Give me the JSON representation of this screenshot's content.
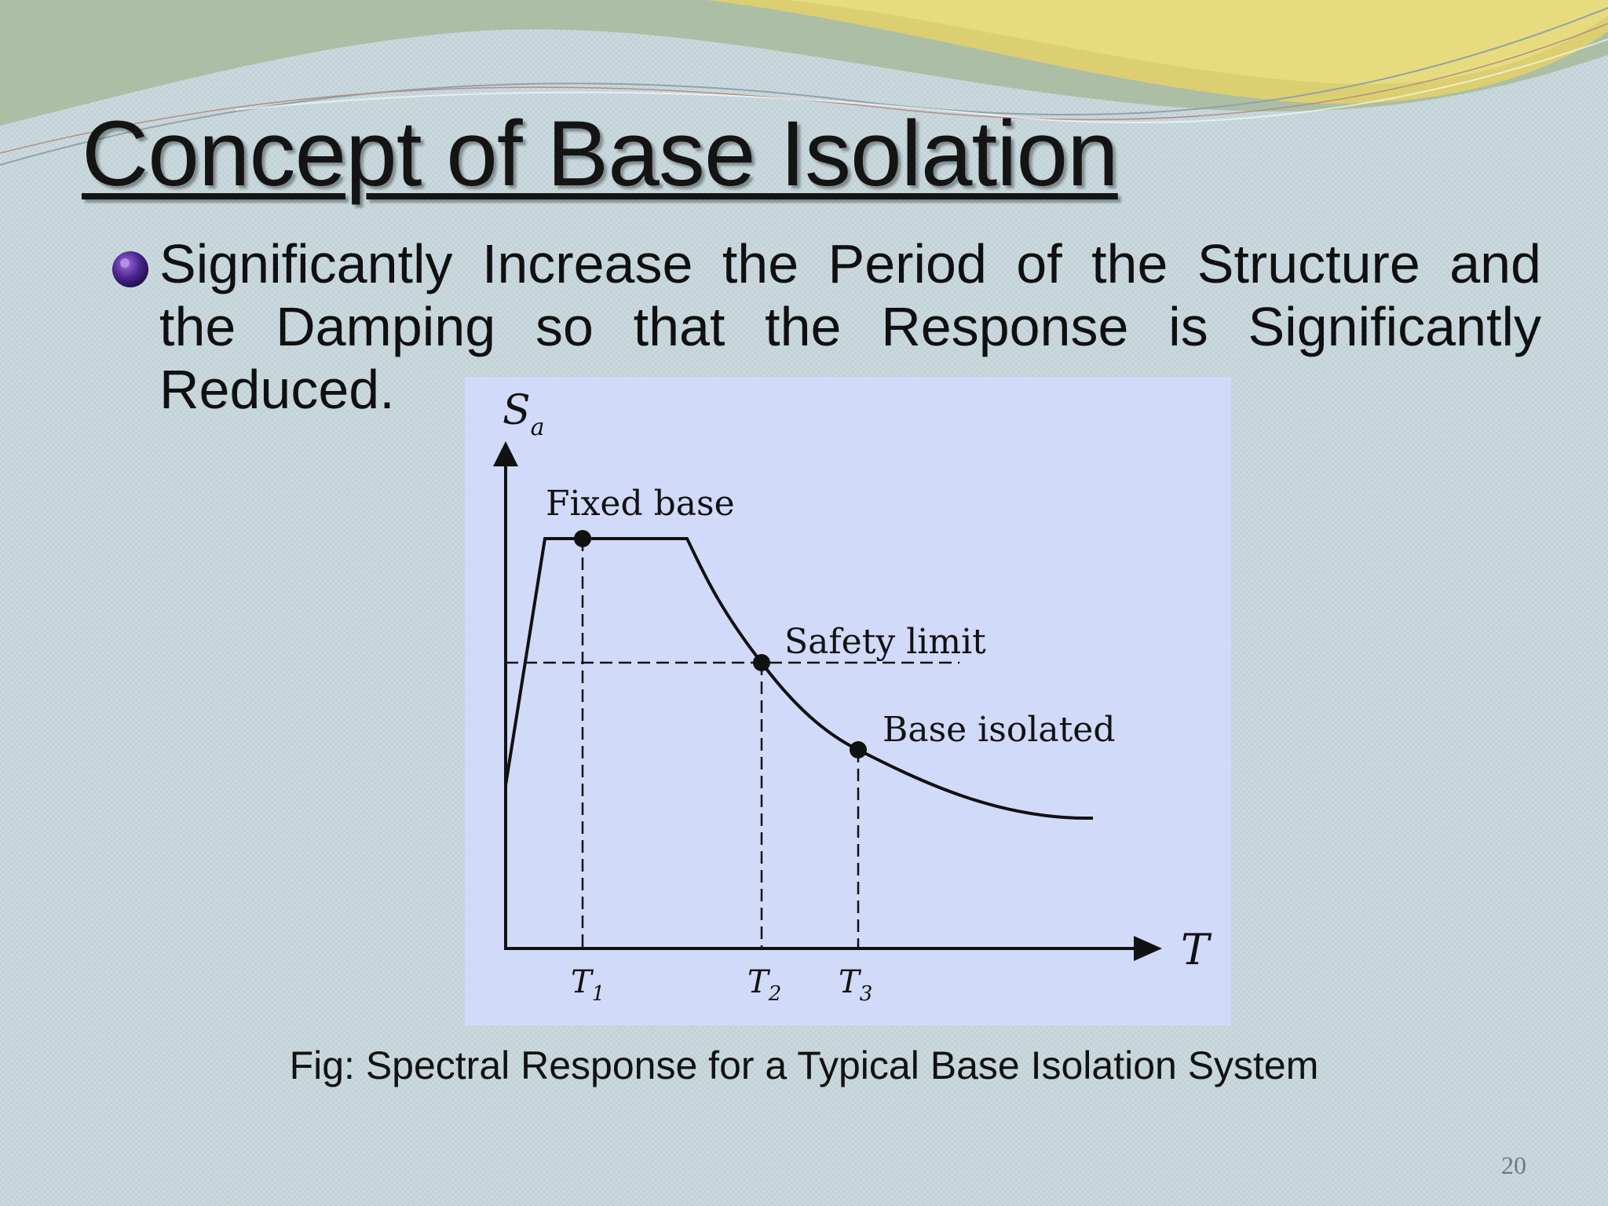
{
  "slide": {
    "title": "Concept of Base Isolation",
    "bullet": {
      "icon": "purple-sphere-bullet-icon",
      "lines": [
        "Significantly Increase the Period of the Structure and",
        "the Damping so that the Response is Significantly",
        "Reduced."
      ]
    },
    "caption": "Fig: Spectral Response for a Typical Base Isolation System",
    "page_number": "20"
  },
  "diagram": {
    "y_axis_label": {
      "main": "S",
      "sub": "a"
    },
    "x_axis_label": "T",
    "points": {
      "fixed_base": "Fixed base",
      "safety_limit": "Safety limit",
      "base_isolated": "Base isolated"
    },
    "ticks": [
      {
        "main": "T",
        "sub": "1"
      },
      {
        "main": "T",
        "sub": "2"
      },
      {
        "main": "T",
        "sub": "3"
      }
    ]
  },
  "colors": {
    "background": "#c6d6da",
    "figure_background": "#d2daf9",
    "swoosh_yellow": "#e4d77a",
    "swoosh_green": "#9fb79a"
  }
}
